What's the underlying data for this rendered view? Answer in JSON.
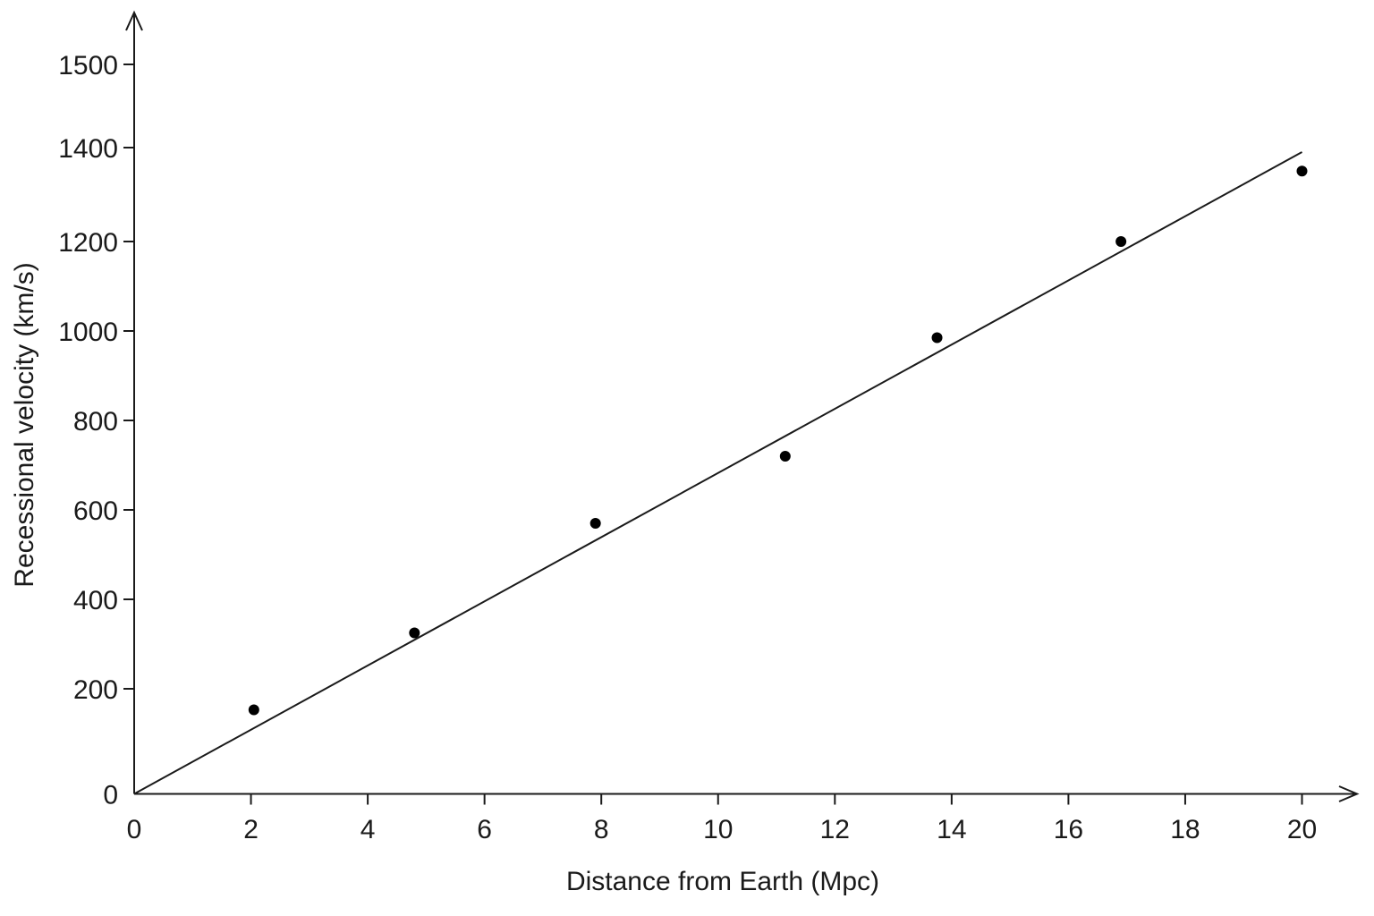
{
  "chart_data": {
    "type": "scatter",
    "title": "",
    "xlabel": "Distance from Earth (Mpc)",
    "ylabel": "Recessional velocity (km/s)",
    "xlim": [
      0,
      20
    ],
    "ylim": [
      0,
      1500
    ],
    "x_ticks": [
      "0",
      "2",
      "4",
      "6",
      "8",
      "10",
      "12",
      "14",
      "16",
      "18",
      "20"
    ],
    "y_ticks": [
      "0",
      "200",
      "400",
      "600",
      "800",
      "1000",
      "1200",
      "1400",
      "1500"
    ],
    "grid": false,
    "series": [
      {
        "points": [
          {
            "x": 2.05,
            "y": 160
          },
          {
            "x": 4.8,
            "y": 325
          },
          {
            "x": 7.9,
            "y": 570
          },
          {
            "x": 11.15,
            "y": 720
          },
          {
            "x": 13.75,
            "y": 985
          },
          {
            "x": 16.9,
            "y": 1200
          },
          {
            "x": 20.0,
            "y": 1350
          }
        ]
      }
    ],
    "trend_line": {
      "from": [
        0,
        0
      ],
      "to": [
        20,
        1400
      ]
    },
    "colors": {
      "line": "#1a1a1a",
      "points": "#000000"
    }
  }
}
